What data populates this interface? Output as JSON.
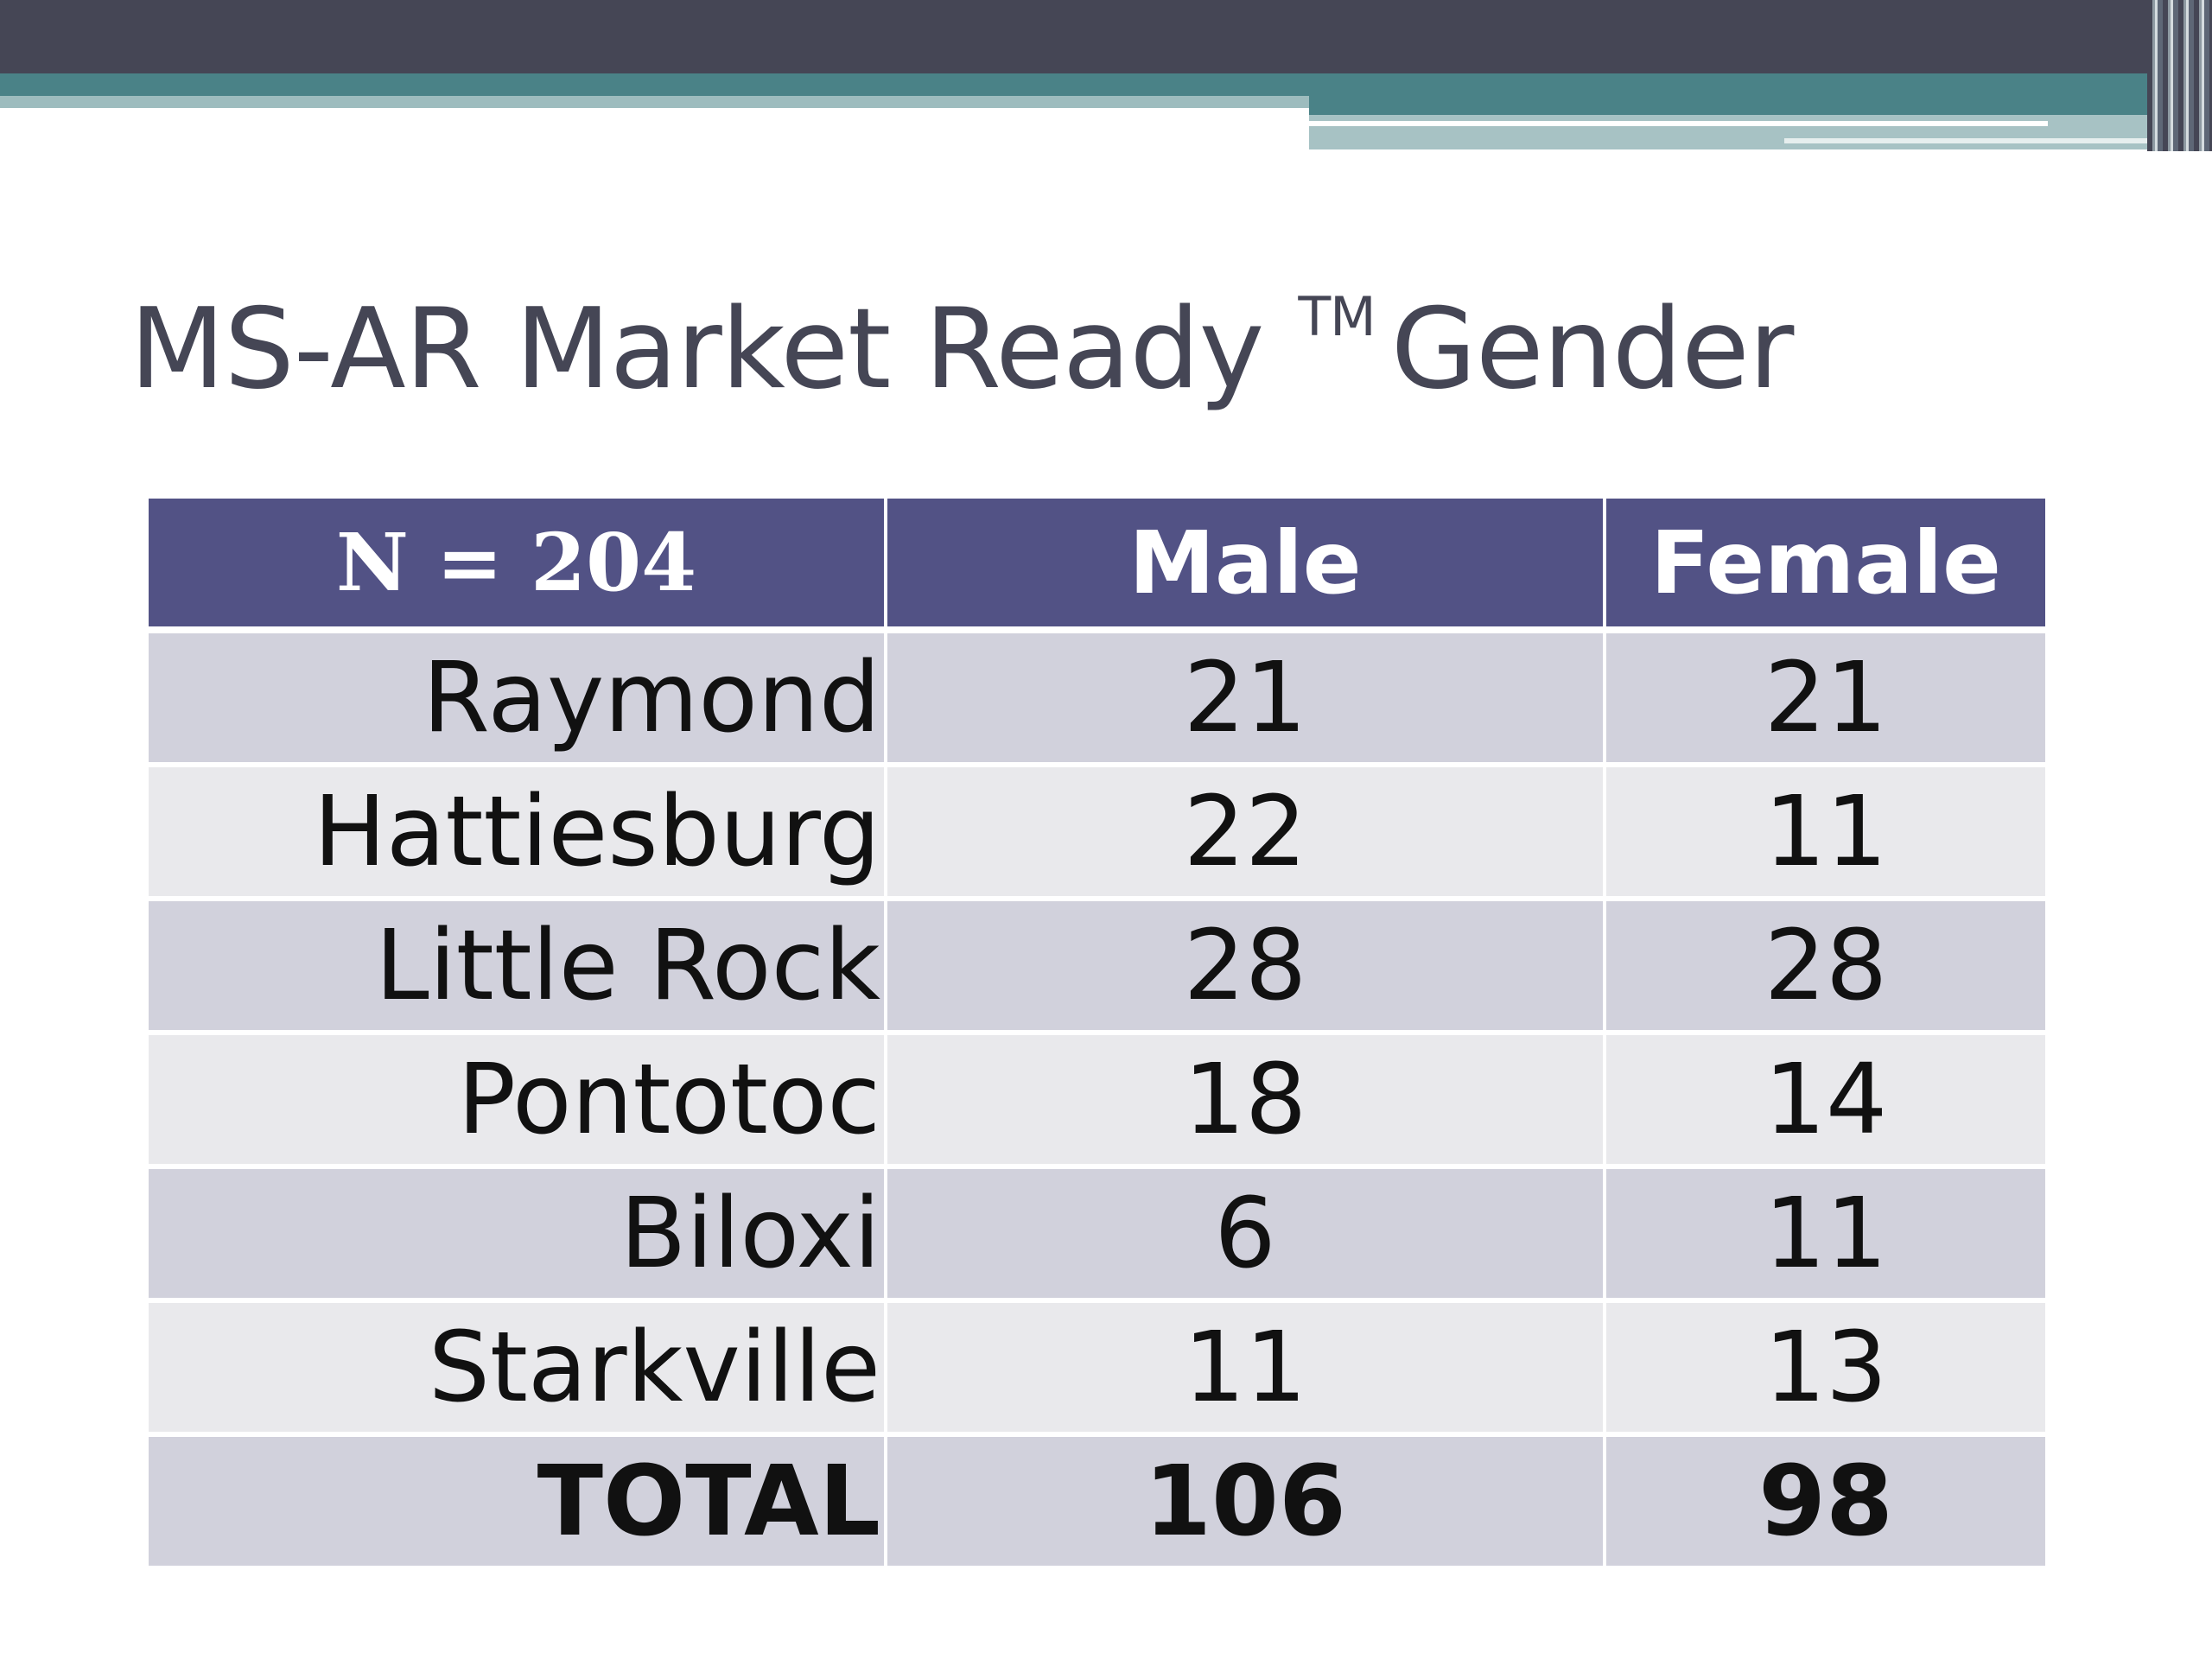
{
  "slide": {
    "title": "MS-AR Market Ready",
    "tm": "TM",
    "title_suffix": "Gender"
  },
  "table": {
    "headers": [
      "N = 204",
      "Male",
      "Female"
    ],
    "rows": [
      {
        "location": "Raymond",
        "male": "21",
        "female": "21"
      },
      {
        "location": "Hattiesburg",
        "male": "22",
        "female": "11"
      },
      {
        "location": "Little Rock",
        "male": "28",
        "female": "28"
      },
      {
        "location": "Pontotoc",
        "male": "18",
        "female": "14"
      },
      {
        "location": "Biloxi",
        "male": "6",
        "female": "11"
      },
      {
        "location": "Starkville",
        "male": "11",
        "female": "13"
      }
    ],
    "total": {
      "location": "TOTAL",
      "male": "106",
      "female": "98"
    }
  },
  "colors": {
    "header_bg": "#525285",
    "row_dark": "#d1d1dc",
    "row_light": "#e9e9ec",
    "title": "#454655",
    "accent_dark": "#454655",
    "accent_teal": "#4a8287"
  }
}
